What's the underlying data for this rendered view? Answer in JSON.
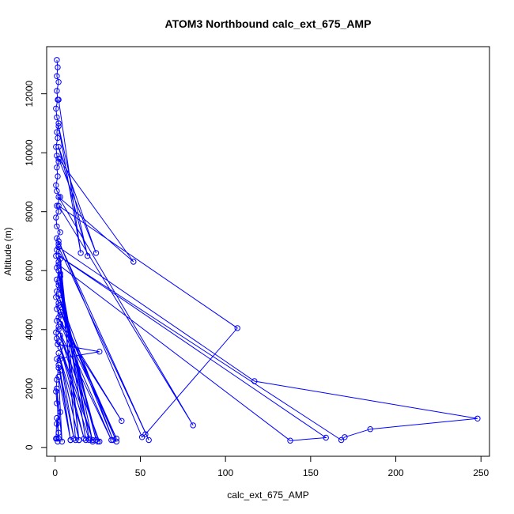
{
  "chart_data": {
    "type": "line",
    "title": "ATOM3 Northbound calc_ext_675_AMP",
    "xlabel": "calc_ext_675_AMP",
    "ylabel": "Altitude (m)",
    "xlim": [
      -5,
      255
    ],
    "ylim": [
      -300,
      13600
    ],
    "xticks": [
      0,
      50,
      100,
      150,
      200,
      250
    ],
    "yticks": [
      0,
      2000,
      4000,
      6000,
      8000,
      10000,
      12000
    ],
    "series_color": "#0000ff",
    "grid": false,
    "legend": "none",
    "series": [
      {
        "x": [
          1,
          1.5,
          1,
          2,
          1,
          1.5,
          0.5,
          1,
          2,
          1,
          1.5,
          0.5,
          1,
          2,
          1,
          1.5,
          0.5,
          1,
          3,
          1,
          2,
          0.5,
          1,
          3,
          1,
          2,
          1,
          0.5,
          2,
          1,
          3,
          1,
          2,
          1,
          0.5,
          2,
          1,
          3,
          1,
          2,
          0.5,
          1,
          1.5,
          26,
          1,
          2,
          1,
          0.5,
          1,
          3,
          1,
          2,
          1,
          1.5
        ],
        "y": [
          13150,
          12900,
          12600,
          12400,
          12100,
          11800,
          11500,
          11200,
          11000,
          10700,
          10500,
          10200,
          9900,
          9700,
          9500,
          9200,
          8900,
          8700,
          8500,
          8200,
          8000,
          7800,
          7500,
          7300,
          7100,
          6900,
          6700,
          6500,
          6300,
          6100,
          5900,
          5700,
          5500,
          5300,
          5100,
          4900,
          4700,
          4500,
          4300,
          4100,
          3900,
          3700,
          3500,
          3250,
          3000,
          2700,
          2300,
          1900,
          1500,
          1200,
          800,
          500,
          300,
          200
        ]
      },
      {
        "x": [
          2,
          15,
          2,
          19,
          2,
          24,
          2,
          46,
          2,
          81,
          2,
          107,
          53,
          51,
          2,
          55,
          2,
          117,
          248,
          185,
          170,
          168,
          2,
          159,
          138,
          2
        ],
        "y": [
          11800,
          6600,
          10900,
          6500,
          10200,
          6600,
          9800,
          6300,
          8500,
          750,
          8200,
          4050,
          450,
          350,
          7000,
          250,
          6800,
          2250,
          980,
          620,
          350,
          250,
          6500,
          330,
          230,
          6200
        ]
      },
      {
        "x": [
          2,
          12,
          3,
          14,
          2,
          18,
          3,
          20,
          2,
          22,
          3,
          24,
          2,
          25,
          3,
          34,
          2,
          36,
          3,
          36,
          2,
          39,
          3,
          33,
          2,
          26,
          3,
          22,
          2,
          20,
          3,
          17,
          2,
          14,
          3,
          11,
          2,
          9,
          3,
          9,
          2,
          4,
          1,
          2,
          1,
          0.5
        ],
        "y": [
          6800,
          250,
          6400,
          250,
          6000,
          250,
          5800,
          300,
          5600,
          200,
          5400,
          250,
          5200,
          200,
          5000,
          250,
          4800,
          200,
          4600,
          300,
          4400,
          900,
          4200,
          250,
          4000,
          200,
          3800,
          250,
          3600,
          250,
          3400,
          300,
          3200,
          250,
          3000,
          300,
          2800,
          250,
          2600,
          250,
          2400,
          200,
          2000,
          300,
          1000,
          300
        ]
      }
    ]
  }
}
